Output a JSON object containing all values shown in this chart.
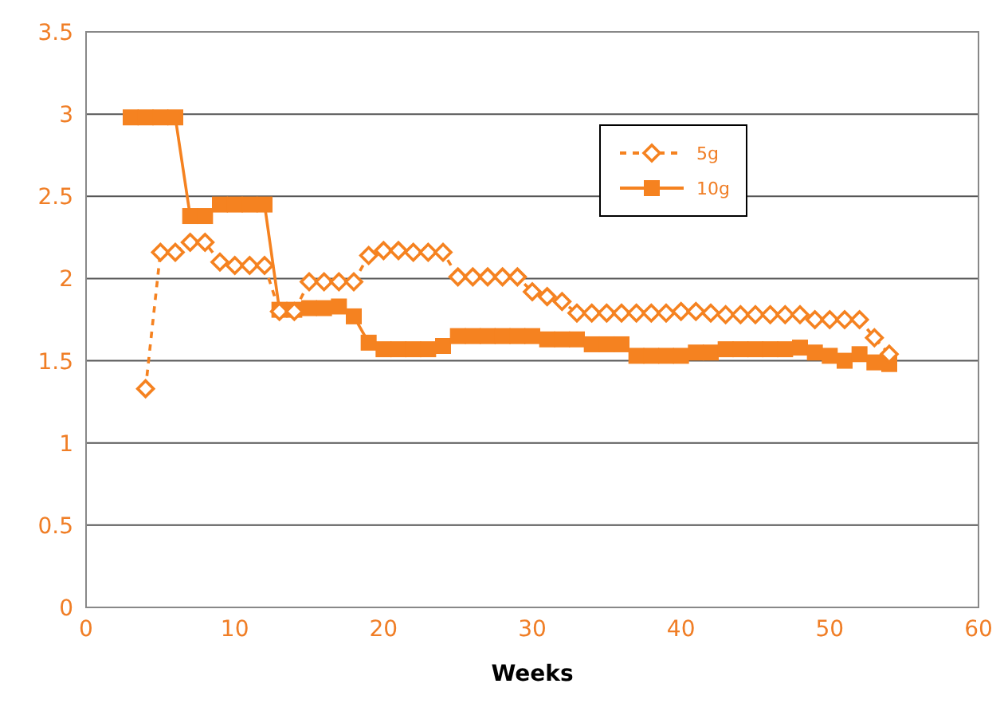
{
  "chart_data": {
    "type": "line",
    "xlabel": "Weeks",
    "xlim": [
      0,
      60
    ],
    "xticks": [
      0,
      10,
      20,
      30,
      40,
      50,
      60
    ],
    "ylim": [
      0,
      3.5
    ],
    "yticks": [
      0,
      0.5,
      1,
      1.5,
      2,
      2.5,
      3,
      3.5
    ],
    "grid": "y",
    "legend": "top right",
    "series": [
      {
        "name": "5g",
        "color": "#f58220",
        "marker": "diamond",
        "line_style": "dashed",
        "x": [
          4,
          5,
          6,
          7,
          8,
          9,
          10,
          11,
          12,
          13,
          14,
          15,
          16,
          17,
          18,
          19,
          20,
          21,
          22,
          23,
          24,
          25,
          26,
          27,
          28,
          29,
          30,
          31,
          32,
          33,
          34,
          35,
          36,
          37,
          38,
          39,
          40,
          41,
          42,
          43,
          44,
          45,
          46,
          47,
          48,
          49,
          50,
          51,
          52,
          53,
          54
        ],
        "values": [
          1.33,
          2.16,
          2.16,
          2.22,
          2.22,
          2.1,
          2.08,
          2.08,
          2.08,
          1.8,
          1.8,
          1.98,
          1.98,
          1.98,
          1.98,
          2.14,
          2.17,
          2.17,
          2.16,
          2.16,
          2.16,
          2.01,
          2.01,
          2.01,
          2.01,
          2.01,
          1.92,
          1.89,
          1.86,
          1.79,
          1.79,
          1.79,
          1.79,
          1.79,
          1.79,
          1.79,
          1.8,
          1.8,
          1.79,
          1.78,
          1.78,
          1.78,
          1.78,
          1.78,
          1.78,
          1.75,
          1.75,
          1.75,
          1.75,
          1.64,
          1.54
        ]
      },
      {
        "name": "10g",
        "color": "#f58220",
        "marker": "square",
        "line_style": "solid",
        "x": [
          3,
          4,
          5,
          6,
          7,
          8,
          9,
          10,
          11,
          12,
          13,
          14,
          15,
          16,
          17,
          18,
          19,
          20,
          21,
          22,
          23,
          24,
          25,
          26,
          27,
          28,
          29,
          30,
          31,
          32,
          33,
          34,
          35,
          36,
          37,
          38,
          39,
          40,
          41,
          42,
          43,
          44,
          45,
          46,
          47,
          48,
          49,
          50,
          51,
          52,
          53,
          54
        ],
        "values": [
          2.98,
          2.98,
          2.98,
          2.98,
          2.38,
          2.38,
          2.45,
          2.45,
          2.45,
          2.45,
          1.81,
          1.81,
          1.82,
          1.82,
          1.83,
          1.77,
          1.61,
          1.57,
          1.57,
          1.57,
          1.57,
          1.59,
          1.65,
          1.65,
          1.65,
          1.65,
          1.65,
          1.65,
          1.63,
          1.63,
          1.63,
          1.6,
          1.6,
          1.6,
          1.53,
          1.53,
          1.53,
          1.53,
          1.55,
          1.55,
          1.57,
          1.57,
          1.57,
          1.57,
          1.57,
          1.58,
          1.55,
          1.53,
          1.5,
          1.54,
          1.49,
          1.48
        ]
      }
    ]
  }
}
